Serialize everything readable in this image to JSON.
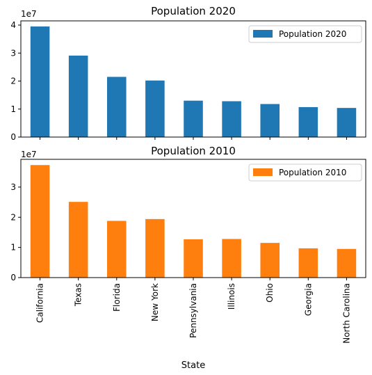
{
  "chart_data": [
    {
      "type": "bar",
      "title": "Population 2020",
      "multiplier": "1e7",
      "categories": [
        "California",
        "Texas",
        "Florida",
        "New York",
        "Pennsylvania",
        "Illinois",
        "Ohio",
        "Georgia",
        "North Carolina"
      ],
      "series": [
        {
          "name": "Population 2020",
          "color": "#1f77b4",
          "values": [
            39500000,
            29100000,
            21500000,
            20200000,
            13000000,
            12800000,
            11800000,
            10700000,
            10400000
          ]
        }
      ],
      "yticks": [
        0,
        1,
        2,
        3,
        4
      ],
      "ylim": [
        0,
        41500000
      ],
      "legend": "top-right",
      "grid": false
    },
    {
      "type": "bar",
      "title": "Population 2010",
      "multiplier": "1e7",
      "xlabel": "State",
      "categories": [
        "California",
        "Texas",
        "Florida",
        "New York",
        "Pennsylvania",
        "Illinois",
        "Ohio",
        "Georgia",
        "North Carolina"
      ],
      "series": [
        {
          "name": "Population 2010",
          "color": "#ff7f0e",
          "values": [
            37300000,
            25100000,
            18800000,
            19400000,
            12700000,
            12800000,
            11500000,
            9700000,
            9500000
          ]
        }
      ],
      "yticks": [
        0,
        1,
        2,
        3
      ],
      "ylim": [
        0,
        39200000
      ],
      "legend": "top-right",
      "grid": false
    }
  ]
}
